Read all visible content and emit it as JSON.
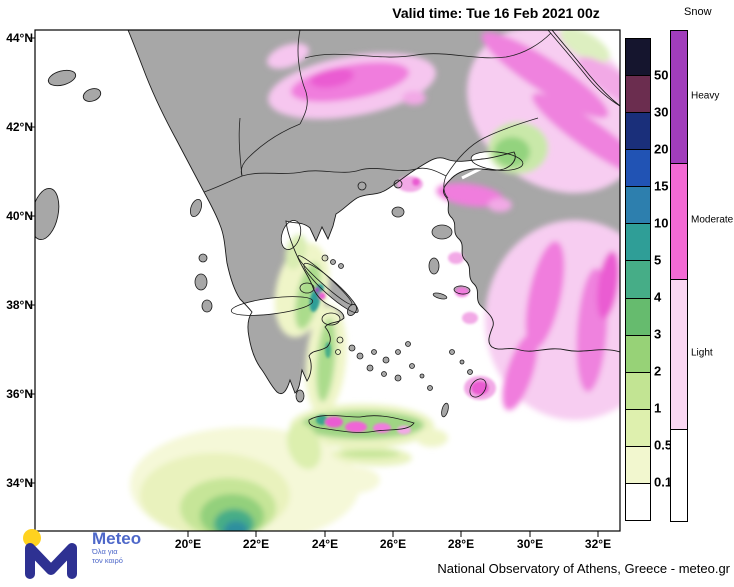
{
  "header": {
    "valid_time": "Valid time: Tue 16 Feb 2021 00z"
  },
  "footer": {
    "credit": "National Observatory of Athens, Greece - meteo.gr"
  },
  "logo": {
    "brand": "Meteo",
    "tagline_line1": "Όλα για",
    "tagline_line2": "τον καιρό",
    "brand_color": "#4e68c9",
    "m_color": "#2e3192",
    "sun_color": "#ffd21f"
  },
  "map": {
    "lat_labels": [
      "44°N",
      "42°N",
      "40°N",
      "38°N",
      "36°N",
      "34°N"
    ],
    "lon_labels": [
      "20°E",
      "22°E",
      "24°E",
      "26°E",
      "28°E",
      "30°E",
      "32°E"
    ],
    "land_color": "#a7a7a7",
    "sea_color": "#ffffff"
  },
  "legend_precip": {
    "tick_labels": [
      "50",
      "30",
      "20",
      "15",
      "10",
      "5",
      "4",
      "3",
      "2",
      "1",
      "0.5",
      "0.1"
    ],
    "segment_colors_top_to_bottom": [
      "#15152e",
      "#6b2d4f",
      "#1a2f7a",
      "#2153b4",
      "#2d7fae",
      "#2f9e97",
      "#46ad87",
      "#66bb6e",
      "#97d277",
      "#c2e493",
      "#def0ae",
      "#f2f7cf",
      "#ffffff"
    ]
  },
  "legend_snow": {
    "title": "Snow",
    "labels": [
      "Heavy",
      "Moderate",
      "Light"
    ],
    "segment_colors_top_to_bottom": [
      "#a13dbb",
      "#f36ad4",
      "#fad7f2",
      "#ffffff"
    ]
  }
}
